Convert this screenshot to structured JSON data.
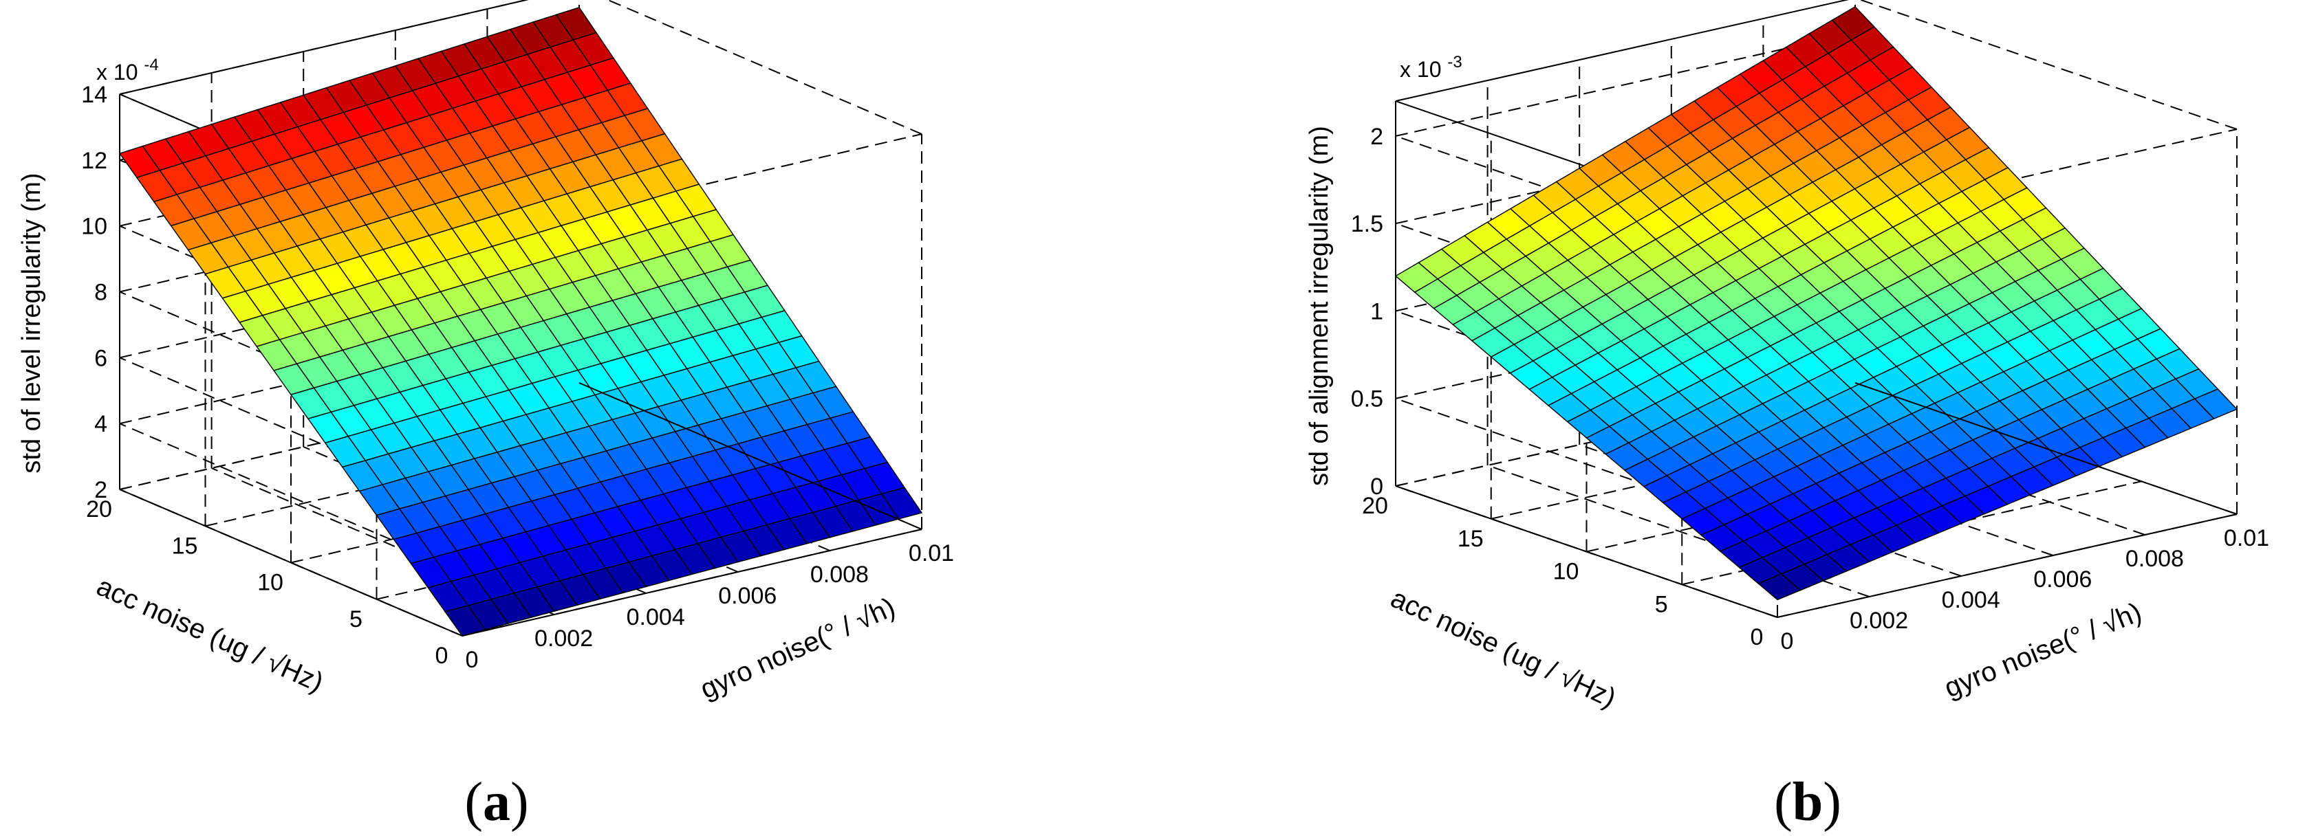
{
  "chart_data": [
    {
      "type": "surface",
      "panel_label": "a",
      "zlabel": "std of level irregularity (m)",
      "xlabel": "gyro noise(° / √h)",
      "ylabel": "acc noise (ug / √Hz)",
      "exponent": "x 10",
      "exponent_power": "-4",
      "x_ticks": [
        "0",
        "0.002",
        "0.004",
        "0.006",
        "0.008",
        "0.01"
      ],
      "y_ticks": [
        "0",
        "5",
        "10",
        "15",
        "20"
      ],
      "z_ticks": [
        "2",
        "4",
        "6",
        "8",
        "10",
        "12",
        "14"
      ],
      "xlim": [
        0,
        0.01
      ],
      "ylim": [
        0,
        20
      ],
      "zlim": [
        2,
        14
      ],
      "corner_values": {
        "x0_y0": 2.0,
        "x001_y0": 2.5,
        "x0_y20": 12.2,
        "x001_y20": 13.4
      },
      "grid_size": 21,
      "colormap": "jet"
    },
    {
      "type": "surface",
      "panel_label": "b",
      "zlabel": "std of alignment irregularity (m)",
      "xlabel": "gyro noise(° / √h)",
      "ylabel": "acc noise (ug / √Hz)",
      "exponent": "x 10",
      "exponent_power": "-3",
      "x_ticks": [
        "0",
        "0.002",
        "0.004",
        "0.006",
        "0.008",
        "0.01"
      ],
      "y_ticks": [
        "0",
        "5",
        "10",
        "15",
        "20"
      ],
      "z_ticks": [
        "0",
        "0.5",
        "1",
        "1.5",
        "2"
      ],
      "xlim": [
        0,
        0.01
      ],
      "ylim": [
        0,
        20
      ],
      "zlim": [
        0,
        2.2
      ],
      "corner_values": {
        "x0_y0": 0.1,
        "x001_y0": 0.6,
        "x0_y20": 1.2,
        "x001_y20": 2.15
      },
      "grid_size": 21,
      "colormap": "jet"
    }
  ]
}
